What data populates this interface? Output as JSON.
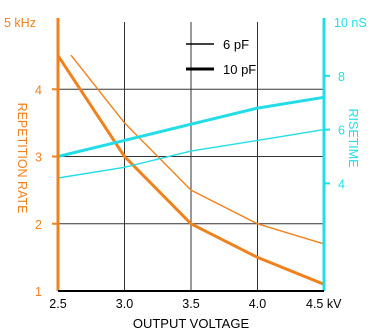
{
  "chart_data": {
    "type": "line",
    "xlabel": "OUTPUT VOLTAGE",
    "x_ticks": [
      "2.5",
      "3.0",
      "3.5",
      "4.0",
      "4.5 kV"
    ],
    "x_tick_values": [
      2.5,
      3.0,
      3.5,
      4.0,
      4.5
    ],
    "xlim": [
      2.5,
      4.5
    ],
    "left_axis": {
      "label": "REPETITION RATE",
      "ylim": [
        1,
        5
      ],
      "ticks": [
        "1",
        "2",
        "3",
        "4",
        "5 kHz"
      ],
      "tick_values": [
        1,
        2,
        3,
        4,
        5
      ],
      "color": "#f0821e"
    },
    "right_axis": {
      "label": "RISETIME",
      "ylim": [
        0,
        10
      ],
      "ticks": [
        "4",
        "6",
        "8",
        "10 nS"
      ],
      "tick_values": [
        4,
        6,
        8,
        10
      ],
      "color": "#22dde8"
    },
    "grid": true,
    "legend": {
      "placement": "top-center",
      "entries": [
        {
          "label": "6 pF",
          "weight": "thin"
        },
        {
          "label": "10 pF",
          "weight": "thick"
        }
      ]
    },
    "series": [
      {
        "axis": "left",
        "legend": "6 pF",
        "weight": "thin",
        "color": "#f0821e",
        "points": [
          [
            2.6,
            4.5
          ],
          [
            3.0,
            3.5
          ],
          [
            3.5,
            2.5
          ],
          [
            4.0,
            2.0
          ],
          [
            4.5,
            1.7
          ]
        ]
      },
      {
        "axis": "left",
        "legend": "10 pF",
        "weight": "thick",
        "color": "#f0821e",
        "points": [
          [
            2.5,
            4.5
          ],
          [
            3.0,
            3.0
          ],
          [
            3.5,
            2.0
          ],
          [
            4.0,
            1.5
          ],
          [
            4.5,
            1.1
          ]
        ]
      },
      {
        "axis": "right",
        "legend": "6 pF",
        "weight": "thin",
        "color": "#22dde8",
        "points": [
          [
            2.5,
            4.2
          ],
          [
            3.0,
            4.6
          ],
          [
            3.5,
            5.2
          ],
          [
            4.0,
            5.6
          ],
          [
            4.5,
            6.0
          ]
        ]
      },
      {
        "axis": "right",
        "legend": "10 pF",
        "weight": "thick",
        "color": "#22dde8",
        "points": [
          [
            2.5,
            5.0
          ],
          [
            3.0,
            5.6
          ],
          [
            3.5,
            6.2
          ],
          [
            4.0,
            6.8
          ],
          [
            4.5,
            7.2
          ]
        ]
      }
    ]
  }
}
